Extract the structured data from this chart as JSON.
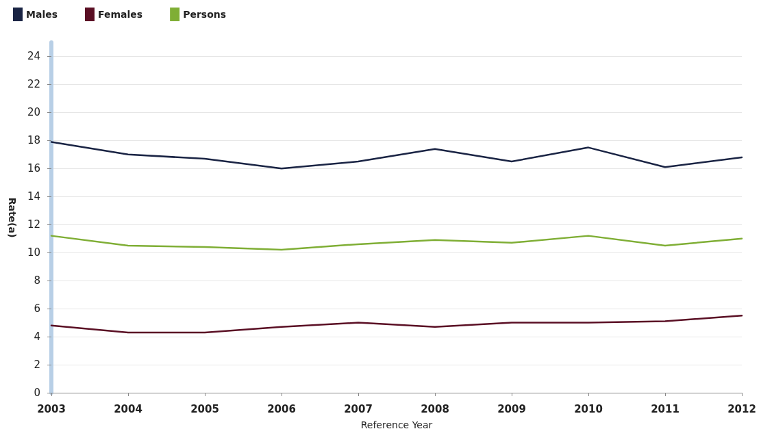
{
  "chart_data": {
    "type": "line",
    "xlabel": "Reference Year",
    "ylabel": "Rate(a)",
    "categories": [
      "2003",
      "2004",
      "2005",
      "2006",
      "2007",
      "2008",
      "2009",
      "2010",
      "2011",
      "2012"
    ],
    "series": [
      {
        "name": "Males",
        "color": "#1a2444",
        "values": [
          17.9,
          17.0,
          16.7,
          16.0,
          16.5,
          17.4,
          16.5,
          17.5,
          16.1,
          16.8
        ]
      },
      {
        "name": "Females",
        "color": "#5a0f24",
        "values": [
          4.8,
          4.3,
          4.3,
          4.7,
          5.0,
          4.7,
          5.0,
          5.0,
          5.1,
          5.5
        ]
      },
      {
        "name": "Persons",
        "color": "#7fae35",
        "values": [
          11.2,
          10.5,
          10.4,
          10.2,
          10.6,
          10.9,
          10.7,
          11.2,
          10.5,
          11.0
        ]
      }
    ],
    "ylim": [
      0,
      25
    ],
    "yticks": [
      0,
      2,
      4,
      6,
      8,
      10,
      12,
      14,
      16,
      18,
      20,
      22,
      24
    ],
    "grid": "y",
    "legend": "top left",
    "marker": "none",
    "line_style": "solid"
  }
}
